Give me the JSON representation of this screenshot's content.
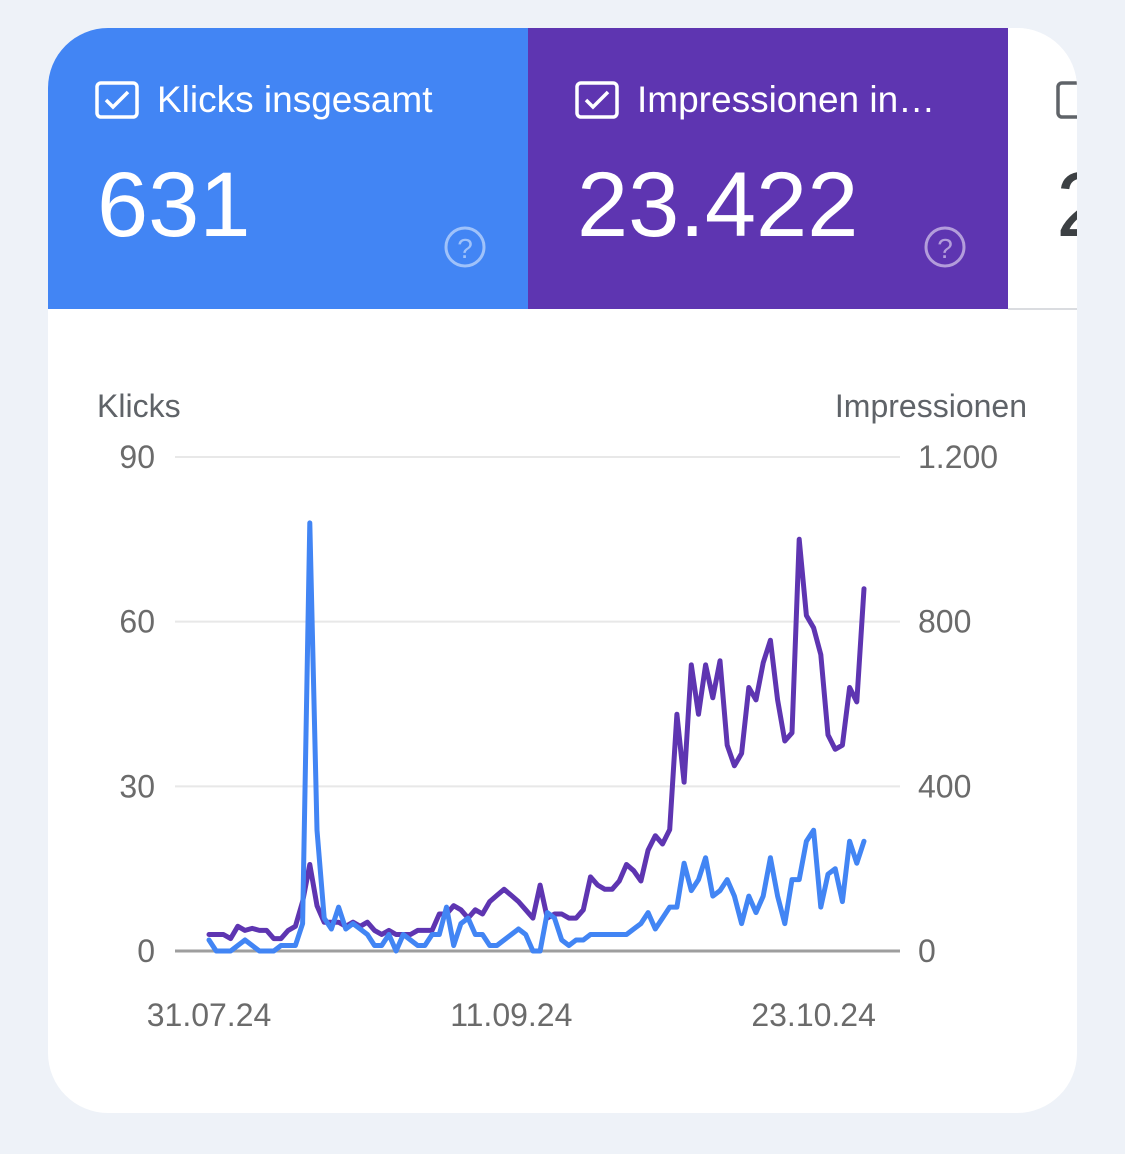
{
  "cards": [
    {
      "label": "Klicks insgesamt",
      "value": "631"
    },
    {
      "label": "Impressionen in…",
      "value": "23.422"
    },
    {
      "value": "2"
    }
  ],
  "chart_data": {
    "type": "line",
    "y_label": "Klicks",
    "y2_label": "Impressionen",
    "x": [
      "31.07.24",
      "01.08.24",
      "02.08.24",
      "03.08.24",
      "04.08.24",
      "05.08.24",
      "06.08.24",
      "07.08.24",
      "08.08.24",
      "09.08.24",
      "10.08.24",
      "11.08.24",
      "12.08.24",
      "13.08.24",
      "14.08.24",
      "15.08.24",
      "16.08.24",
      "17.08.24",
      "18.08.24",
      "19.08.24",
      "20.08.24",
      "21.08.24",
      "22.08.24",
      "23.08.24",
      "24.08.24",
      "25.08.24",
      "26.08.24",
      "27.08.24",
      "28.08.24",
      "29.08.24",
      "30.08.24",
      "31.08.24",
      "01.09.24",
      "02.09.24",
      "03.09.24",
      "04.09.24",
      "05.09.24",
      "06.09.24",
      "07.09.24",
      "08.09.24",
      "09.09.24",
      "10.09.24",
      "11.09.24",
      "12.09.24",
      "13.09.24",
      "14.09.24",
      "15.09.24",
      "16.09.24",
      "17.09.24",
      "18.09.24",
      "19.09.24",
      "20.09.24",
      "21.09.24",
      "22.09.24",
      "23.09.24",
      "24.09.24",
      "25.09.24",
      "26.09.24",
      "27.09.24",
      "28.09.24",
      "29.09.24",
      "30.09.24",
      "01.10.24",
      "02.10.24",
      "03.10.24",
      "04.10.24",
      "05.10.24",
      "06.10.24",
      "07.10.24",
      "08.10.24",
      "09.10.24",
      "10.10.24",
      "11.10.24",
      "12.10.24",
      "13.10.24",
      "14.10.24",
      "15.10.24",
      "16.10.24",
      "17.10.24",
      "18.10.24",
      "19.10.24",
      "20.10.24",
      "21.10.24",
      "22.10.24",
      "23.10.24",
      "24.10.24",
      "25.10.24",
      "26.10.24",
      "27.10.24",
      "28.10.24",
      "29.10.24",
      "30.10.24"
    ],
    "xticks": [
      "31.07.24",
      "11.09.24",
      "23.10.24"
    ],
    "series": [
      {
        "color": "#5e35b1",
        "axis": "y2",
        "values": [
          40,
          40,
          40,
          30,
          60,
          50,
          55,
          50,
          50,
          30,
          30,
          50,
          60,
          120,
          210,
          110,
          70,
          70,
          70,
          60,
          70,
          60,
          70,
          50,
          40,
          50,
          40,
          40,
          40,
          50,
          50,
          50,
          90,
          90,
          110,
          100,
          80,
          100,
          90,
          120,
          135,
          150,
          135,
          120,
          100,
          80,
          160,
          80,
          90,
          90,
          80,
          80,
          100,
          180,
          160,
          150,
          150,
          170,
          210,
          195,
          170,
          245,
          280,
          260,
          295,
          575,
          410,
          695,
          575,
          695,
          615,
          705,
          500,
          450,
          480,
          640,
          610,
          700,
          755,
          610,
          510,
          530,
          1000,
          815,
          785,
          720,
          525,
          490,
          500,
          640,
          605,
          880
        ]
      },
      {
        "color": "#4285f4",
        "values": [
          2,
          0,
          0,
          0,
          1,
          2,
          1,
          0,
          0,
          0,
          1,
          1,
          1,
          5,
          78,
          22,
          6,
          4,
          8,
          4,
          5,
          4,
          3,
          1,
          1,
          3,
          0,
          3,
          2,
          1,
          1,
          3,
          3,
          8,
          1,
          5,
          6,
          3,
          3,
          1,
          1,
          2,
          3,
          4,
          3,
          0,
          0,
          7,
          6,
          2,
          1,
          2,
          2,
          3,
          3,
          3,
          3,
          3,
          3,
          4,
          5,
          7,
          4,
          6,
          8,
          8,
          16,
          11,
          13,
          17,
          10,
          11,
          13,
          10,
          5,
          10,
          7,
          10,
          17,
          10,
          5,
          13,
          13,
          20,
          22,
          8,
          14,
          15,
          9,
          20,
          16,
          20
        ]
      }
    ],
    "ylim": [
      0,
      90
    ],
    "yticks": [
      0,
      30,
      60,
      90
    ],
    "y2lim": [
      0,
      1200
    ],
    "y2ticks": [
      0,
      400,
      800,
      {
        "value": 1200,
        "label": "1.200"
      }
    ],
    "grid": true
  }
}
